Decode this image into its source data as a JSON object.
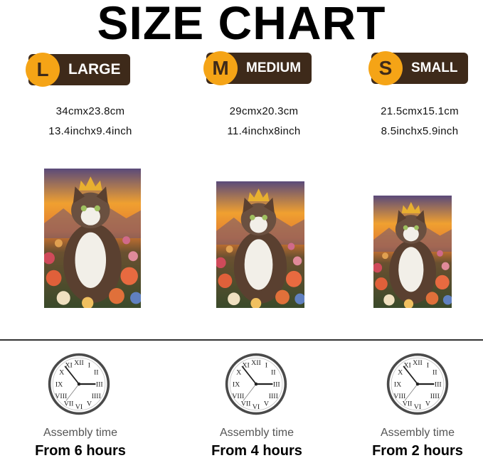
{
  "title": "SIZE CHART",
  "sizes": [
    {
      "letter": "L",
      "name": "LARGE",
      "cm": "34cmx23.8cm",
      "inch": "13.4inchx9.4inch",
      "assembly_label": "Assembly time",
      "assembly_time": "From 6 hours"
    },
    {
      "letter": "M",
      "name": "MEDIUM",
      "cm": "29cmx20.3cm",
      "inch": "11.4inchx8inch",
      "assembly_label": "Assembly time",
      "assembly_time": "From 4 hours"
    },
    {
      "letter": "S",
      "name": "SMALL",
      "cm": "21.5cmx15.1cm",
      "inch": "8.5inchx5.9inch",
      "assembly_label": "Assembly time",
      "assembly_time": "From 2 hours"
    }
  ],
  "image_subject": "cat-with-crown-in-flowers-painting",
  "colors": {
    "badge_bg": "#3e2a1a",
    "badge_circle": "#f5a416"
  }
}
